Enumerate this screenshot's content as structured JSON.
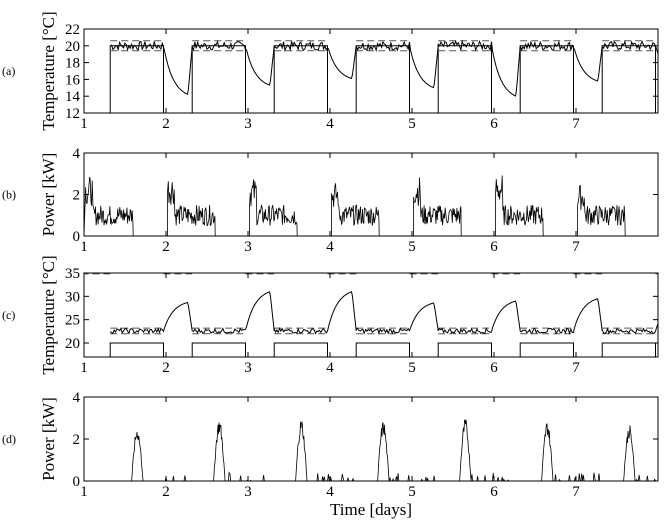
{
  "chart_data": [
    {
      "type": "line",
      "panel_label": "(a)",
      "xlabel": "",
      "ylabel": "Temperature [°C]",
      "xlim": [
        1,
        8
      ],
      "ylim": [
        12,
        22
      ],
      "xticks": [
        1,
        2,
        3,
        4,
        5,
        6,
        7
      ],
      "yticks": [
        12,
        14,
        16,
        18,
        20,
        22
      ],
      "grid": false,
      "features": {
        "kind": "temperature",
        "day_start": 0.32,
        "day_end": 0.72,
        "upper": 20.6,
        "lower": 19.4,
        "setpoint": 20.0,
        "sched_low": 12,
        "sched_high": 20,
        "night_mins": [
          14.2,
          15.3,
          16.1,
          15.0,
          14.0,
          15.8,
          16.2,
          17.4
        ],
        "rise_to_setpoint": 20.0
      }
    },
    {
      "type": "line",
      "panel_label": "(b)",
      "xlabel": "",
      "ylabel": "Power [kW]",
      "xlim": [
        1,
        8
      ],
      "ylim": [
        0,
        4
      ],
      "xticks": [
        1,
        2,
        3,
        4,
        5,
        6,
        7
      ],
      "yticks": [
        0,
        2,
        4
      ],
      "grid": false,
      "features": {
        "kind": "power",
        "peaks": [
          2.9,
          3.0,
          2.8,
          2.6,
          2.9,
          3.0,
          2.5,
          2.3
        ],
        "base": 0.8
      }
    },
    {
      "type": "line",
      "panel_label": "(c)",
      "xlabel": "",
      "ylabel": "Temperature [°C]",
      "xlim": [
        1,
        8
      ],
      "ylim": [
        17,
        35
      ],
      "xticks": [
        1,
        2,
        3,
        4,
        5,
        6,
        7
      ],
      "yticks": [
        20,
        25,
        30,
        35
      ],
      "grid": false,
      "features": {
        "kind": "temperature",
        "day_start": 0.32,
        "day_end": 0.72,
        "upper": 23.2,
        "lower": 22.0,
        "setpoint": 22.6,
        "sched_low": 17,
        "sched_high": 20,
        "comfort_high": 34.8,
        "night_peaks": [
          28.7,
          31.0,
          31.0,
          28.6,
          29.0,
          29.5,
          28.9,
          28.5
        ]
      }
    },
    {
      "type": "line",
      "panel_label": "(d)",
      "xlabel": "Time [days]",
      "ylabel": "Power [kW]",
      "xlim": [
        1,
        8
      ],
      "ylim": [
        0,
        4
      ],
      "xticks": [
        1,
        2,
        3,
        4,
        5,
        6,
        7
      ],
      "yticks": [
        0,
        2,
        4
      ],
      "grid": false,
      "features": {
        "kind": "cooling",
        "peaks": [
          2.6,
          3.0,
          3.0,
          2.9,
          3.0,
          2.9,
          2.7,
          2.5
        ]
      }
    }
  ]
}
